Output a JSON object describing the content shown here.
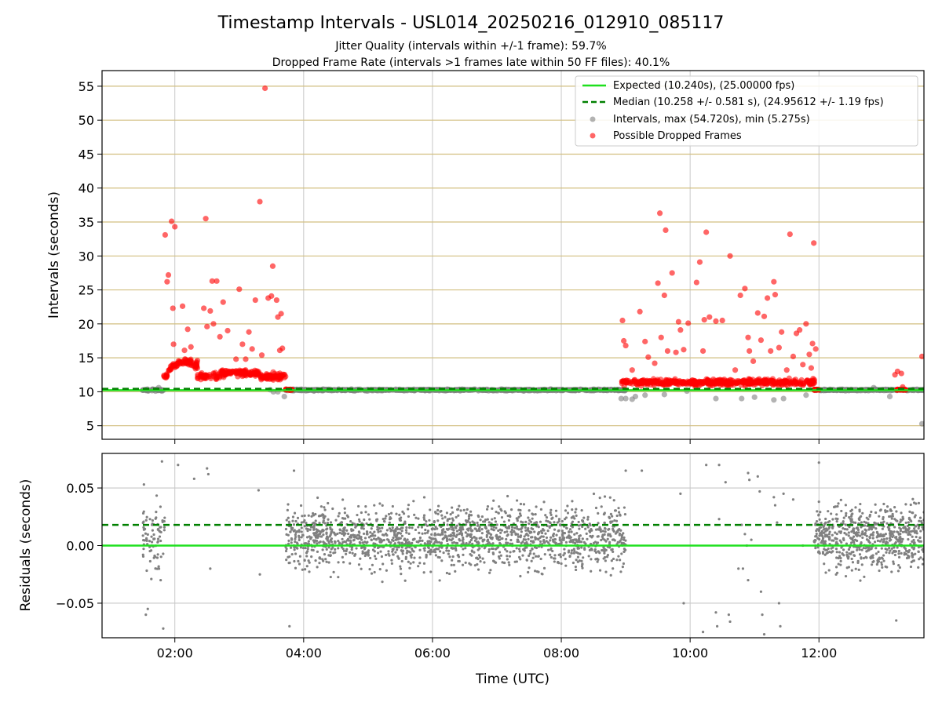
{
  "figure": {
    "title": "Timestamp Intervals - USL014_20250216_012910_085117",
    "subtitle_line1": "Jitter Quality (intervals within +/-1 frame): 59.7%",
    "subtitle_line2": "Dropped Frame Rate (intervals >1 frames late within 50 FF files): 40.1%"
  },
  "colors": {
    "expected": "#1ee01e",
    "median": "#008000",
    "intervals": "#808080",
    "dropped": "#ff0000",
    "grid_top": "#d2bf80",
    "grid_bottom": "#c8c8c8"
  },
  "chart_data": [
    {
      "id": "intervals",
      "type": "scatter",
      "xlabel": "",
      "ylabel": "Intervals (seconds)",
      "xlim": [
        0.87,
        13.63
      ],
      "ylim": [
        3.0,
        57.3
      ],
      "yticks": [
        5,
        10,
        15,
        20,
        25,
        30,
        35,
        40,
        45,
        50,
        55
      ],
      "xticks": [
        2,
        4,
        6,
        8,
        10,
        12
      ],
      "grid": "horizontal-major-and-vertical",
      "legend_placement": "top-right",
      "legend": [
        "Expected (10.240s), (25.00000 fps)",
        "Median (10.258 +/- 0.581 s), (24.95612 +/- 1.19 fps)",
        "Intervals, max (54.720s), min (5.275s)",
        "Possible Dropped Frames"
      ],
      "expected_value": 10.24,
      "median_value": 10.258,
      "baseline_segments": [
        [
          1.5,
          1.85
        ],
        [
          3.72,
          9.0
        ],
        [
          11.92,
          13.63
        ]
      ],
      "dropped_clusters": [
        {
          "x_range": [
            1.83,
            3.72
          ],
          "y_range": [
            10.8,
            15.0
          ]
        },
        {
          "x_range": [
            8.93,
            11.93
          ],
          "y_range": [
            10.6,
            12.8
          ]
        }
      ],
      "series": [
        {
          "name": "Possible Dropped Frames",
          "points": [
            [
              1.85,
              33.1
            ],
            [
              1.88,
              26.2
            ],
            [
              1.9,
              27.2
            ],
            [
              1.95,
              35.1
            ],
            [
              1.97,
              22.3
            ],
            [
              1.98,
              17.0
            ],
            [
              2.0,
              34.3
            ],
            [
              2.12,
              22.6
            ],
            [
              2.15,
              16.1
            ],
            [
              2.2,
              19.2
            ],
            [
              2.25,
              16.6
            ],
            [
              2.35,
              14.6
            ],
            [
              2.45,
              22.3
            ],
            [
              2.48,
              35.5
            ],
            [
              2.5,
              19.6
            ],
            [
              2.55,
              21.9
            ],
            [
              2.58,
              26.3
            ],
            [
              2.6,
              20.0
            ],
            [
              2.65,
              26.3
            ],
            [
              2.7,
              18.1
            ],
            [
              2.75,
              23.2
            ],
            [
              2.82,
              19.0
            ],
            [
              2.95,
              14.8
            ],
            [
              3.0,
              25.1
            ],
            [
              3.05,
              17.0
            ],
            [
              3.1,
              14.8
            ],
            [
              3.15,
              18.8
            ],
            [
              3.2,
              16.3
            ],
            [
              3.25,
              23.5
            ],
            [
              3.32,
              38.0
            ],
            [
              3.35,
              15.4
            ],
            [
              3.4,
              54.7
            ],
            [
              3.45,
              23.8
            ],
            [
              3.5,
              24.1
            ],
            [
              3.52,
              28.5
            ],
            [
              3.58,
              23.5
            ],
            [
              3.6,
              21.0
            ],
            [
              3.63,
              16.1
            ],
            [
              3.65,
              21.5
            ],
            [
              3.67,
              16.4
            ],
            [
              8.95,
              20.5
            ],
            [
              8.97,
              17.5
            ],
            [
              9.0,
              16.8
            ],
            [
              9.1,
              13.2
            ],
            [
              9.22,
              21.8
            ],
            [
              9.3,
              17.4
            ],
            [
              9.35,
              15.1
            ],
            [
              9.45,
              14.2
            ],
            [
              9.5,
              26.0
            ],
            [
              9.53,
              36.3
            ],
            [
              9.55,
              18.0
            ],
            [
              9.6,
              24.2
            ],
            [
              9.62,
              33.8
            ],
            [
              9.65,
              16.0
            ],
            [
              9.72,
              27.5
            ],
            [
              9.78,
              15.8
            ],
            [
              9.82,
              20.3
            ],
            [
              9.85,
              19.1
            ],
            [
              9.9,
              16.2
            ],
            [
              9.97,
              20.1
            ],
            [
              10.1,
              26.1
            ],
            [
              10.15,
              29.1
            ],
            [
              10.2,
              16.0
            ],
            [
              10.22,
              20.6
            ],
            [
              10.25,
              33.5
            ],
            [
              10.3,
              21.0
            ],
            [
              10.4,
              20.4
            ],
            [
              10.5,
              20.5
            ],
            [
              10.62,
              30.0
            ],
            [
              10.7,
              13.2
            ],
            [
              10.78,
              24.2
            ],
            [
              10.85,
              25.2
            ],
            [
              10.9,
              18.0
            ],
            [
              10.92,
              16.0
            ],
            [
              10.98,
              14.5
            ],
            [
              11.05,
              21.6
            ],
            [
              11.1,
              17.6
            ],
            [
              11.15,
              21.1
            ],
            [
              11.2,
              23.8
            ],
            [
              11.25,
              16.0
            ],
            [
              11.3,
              26.2
            ],
            [
              11.32,
              24.3
            ],
            [
              11.38,
              16.5
            ],
            [
              11.42,
              18.8
            ],
            [
              11.5,
              13.2
            ],
            [
              11.55,
              33.2
            ],
            [
              11.6,
              15.2
            ],
            [
              11.65,
              18.6
            ],
            [
              11.7,
              19.1
            ],
            [
              11.75,
              14.0
            ],
            [
              11.8,
              20.0
            ],
            [
              11.85,
              15.5
            ],
            [
              11.88,
              13.5
            ],
            [
              11.9,
              17.1
            ],
            [
              11.92,
              31.9
            ],
            [
              11.95,
              16.3
            ],
            [
              13.18,
              12.5
            ],
            [
              13.22,
              13.0
            ],
            [
              13.28,
              12.7
            ],
            [
              13.3,
              10.7
            ],
            [
              13.6,
              15.2
            ]
          ]
        },
        {
          "name": "Intervals, max (54.720s), min (5.275s)",
          "points": [
            [
              1.7,
              10.1
            ],
            [
              1.75,
              10.6
            ],
            [
              1.8,
              10.1
            ],
            [
              3.48,
              10.3
            ],
            [
              3.53,
              10.0
            ],
            [
              3.6,
              10.0
            ],
            [
              3.7,
              9.3
            ],
            [
              8.93,
              9.0
            ],
            [
              9.0,
              9.0
            ],
            [
              9.1,
              8.9
            ],
            [
              9.15,
              9.3
            ],
            [
              9.3,
              9.5
            ],
            [
              9.6,
              9.6
            ],
            [
              9.95,
              10.1
            ],
            [
              10.4,
              9.0
            ],
            [
              10.8,
              9.0
            ],
            [
              11.0,
              9.2
            ],
            [
              11.3,
              8.8
            ],
            [
              11.45,
              9.0
            ],
            [
              11.8,
              9.5
            ],
            [
              12.1,
              10.2
            ],
            [
              12.5,
              10.3
            ],
            [
              12.85,
              10.6
            ],
            [
              13.1,
              9.3
            ],
            [
              13.6,
              5.28
            ]
          ]
        }
      ]
    },
    {
      "id": "residuals",
      "type": "scatter",
      "xlabel": "Time (UTC)",
      "ylabel": "Residuals (seconds)",
      "xlim": [
        0.87,
        13.63
      ],
      "ylim": [
        -0.08,
        0.08
      ],
      "yticks": [
        -0.05,
        0.0,
        0.05
      ],
      "ytick_labels": [
        "−0.05",
        "0.00",
        "0.05"
      ],
      "xticks": [
        2,
        4,
        6,
        8,
        10,
        12
      ],
      "xtick_labels": [
        "02:00",
        "04:00",
        "06:00",
        "08:00",
        "10:00",
        "12:00"
      ],
      "grid": "horizontal-and-vertical",
      "expected_value": 0.0,
      "median_value": 0.018,
      "density_segments": [
        {
          "x_range": [
            1.5,
            1.85
          ],
          "count": 80
        },
        {
          "x_range": [
            3.72,
            9.0
          ],
          "count": 1700
        },
        {
          "x_range": [
            11.92,
            13.63
          ],
          "count": 650
        }
      ],
      "series": [
        {
          "name": "Residuals",
          "points": [
            [
              1.52,
              0.053
            ],
            [
              1.55,
              -0.06
            ],
            [
              1.58,
              -0.055
            ],
            [
              1.8,
              0.073
            ],
            [
              1.82,
              -0.072
            ],
            [
              1.78,
              -0.03
            ],
            [
              2.05,
              0.07
            ],
            [
              2.3,
              0.058
            ],
            [
              2.5,
              0.067
            ],
            [
              2.52,
              0.062
            ],
            [
              2.55,
              -0.02
            ],
            [
              3.3,
              0.048
            ],
            [
              3.32,
              -0.025
            ],
            [
              3.78,
              -0.07
            ],
            [
              3.85,
              0.065
            ],
            [
              9.0,
              0.065
            ],
            [
              9.25,
              0.065
            ],
            [
              9.85,
              0.045
            ],
            [
              9.9,
              -0.05
            ],
            [
              10.2,
              -0.075
            ],
            [
              10.25,
              0.07
            ],
            [
              10.4,
              -0.058
            ],
            [
              10.45,
              0.023
            ],
            [
              10.42,
              -0.07
            ],
            [
              10.45,
              0.07
            ],
            [
              10.55,
              0.055
            ],
            [
              10.6,
              -0.06
            ],
            [
              10.62,
              -0.066
            ],
            [
              10.75,
              -0.02
            ],
            [
              10.8,
              0.018
            ],
            [
              10.82,
              -0.02
            ],
            [
              10.85,
              0.01
            ],
            [
              10.88,
              0.0
            ],
            [
              10.9,
              0.063
            ],
            [
              10.92,
              0.057
            ],
            [
              10.9,
              -0.03
            ],
            [
              10.95,
              0.005
            ],
            [
              11.05,
              0.06
            ],
            [
              11.08,
              0.047
            ],
            [
              11.1,
              -0.04
            ],
            [
              11.12,
              -0.06
            ],
            [
              11.15,
              -0.077
            ],
            [
              11.3,
              0.042
            ],
            [
              11.32,
              0.035
            ],
            [
              11.35,
              0.02
            ],
            [
              11.38,
              -0.05
            ],
            [
              11.4,
              -0.07
            ],
            [
              11.45,
              0.045
            ],
            [
              11.6,
              0.04
            ],
            [
              11.75,
              0.0
            ],
            [
              12.0,
              0.072
            ],
            [
              13.2,
              -0.065
            ]
          ]
        }
      ]
    }
  ]
}
